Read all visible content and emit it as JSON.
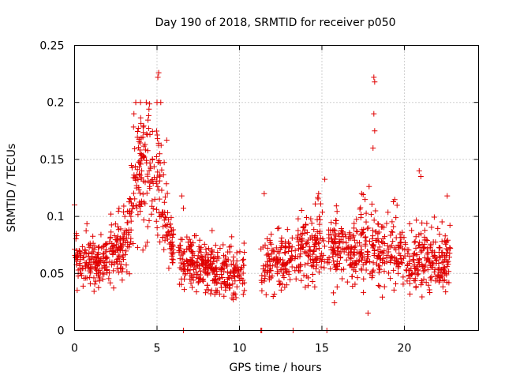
{
  "chart_data": {
    "type": "scatter",
    "title": "Day 190 of 2018, SRMTID for receiver p050",
    "xlabel": "GPS time / hours",
    "ylabel": "SRMTID / TECUs",
    "xlim": [
      0,
      24.5
    ],
    "ylim": [
      0,
      0.25
    ],
    "xticks": [
      0,
      5,
      10,
      15,
      20
    ],
    "yticks": [
      0,
      0.05,
      0.1,
      0.15,
      0.2,
      0.25
    ],
    "xtick_labels": [
      "0",
      "5",
      "10",
      "15",
      "20"
    ],
    "ytick_labels": [
      "0",
      "0.05",
      "0.1",
      "0.15",
      "0.2",
      "0.25"
    ],
    "grid": true,
    "series": [
      {
        "name": "SRMTID",
        "color": "#e00000",
        "marker": "plus",
        "profile_x": [
          0.0,
          0.5,
          1.0,
          1.5,
          2.0,
          2.5,
          3.0,
          3.3,
          3.6,
          4.0,
          4.4,
          4.8,
          5.2,
          5.6,
          6.0,
          6.5,
          7.0,
          8.0,
          9.0,
          10.0,
          10.3,
          11.3,
          12.0,
          13.0,
          14.0,
          15.0,
          16.0,
          17.0,
          18.0,
          19.0,
          20.0,
          21.0,
          22.0,
          22.8
        ],
        "profile_center": [
          0.065,
          0.058,
          0.058,
          0.056,
          0.062,
          0.07,
          0.068,
          0.09,
          0.125,
          0.145,
          0.13,
          0.12,
          0.13,
          0.09,
          0.065,
          0.06,
          0.06,
          0.055,
          0.052,
          0.05,
          0.05,
          0.055,
          0.058,
          0.06,
          0.07,
          0.075,
          0.07,
          0.068,
          0.07,
          0.065,
          0.06,
          0.06,
          0.058,
          0.055
        ],
        "profile_spread": [
          0.02,
          0.018,
          0.018,
          0.018,
          0.02,
          0.022,
          0.022,
          0.035,
          0.045,
          0.05,
          0.05,
          0.045,
          0.05,
          0.03,
          0.02,
          0.02,
          0.02,
          0.02,
          0.02,
          0.018,
          0.018,
          0.02,
          0.022,
          0.022,
          0.025,
          0.028,
          0.025,
          0.025,
          0.03,
          0.025,
          0.022,
          0.025,
          0.022,
          0.02
        ],
        "gaps": [
          [
            10.3,
            11.3
          ],
          [
            6.0,
            6.3
          ],
          [
            13.2,
            13.35
          ],
          [
            15.2,
            15.3
          ]
        ],
        "data_range_x": [
          0.0,
          22.8
        ],
        "notable_points": [
          {
            "x": 18.15,
            "y": 0.222
          },
          {
            "x": 18.2,
            "y": 0.218
          },
          {
            "x": 18.15,
            "y": 0.19
          },
          {
            "x": 18.2,
            "y": 0.175
          },
          {
            "x": 18.1,
            "y": 0.16
          },
          {
            "x": 5.1,
            "y": 0.226
          },
          {
            "x": 5.05,
            "y": 0.222
          },
          {
            "x": 4.0,
            "y": 0.2
          },
          {
            "x": 3.6,
            "y": 0.19
          },
          {
            "x": 5.0,
            "y": 0.2
          },
          {
            "x": 20.9,
            "y": 0.14
          },
          {
            "x": 21.0,
            "y": 0.135
          },
          {
            "x": 0.0,
            "y": 0.11
          },
          {
            "x": 6.5,
            "y": 0.118
          },
          {
            "x": 11.5,
            "y": 0.12
          },
          {
            "x": 14.8,
            "y": 0.12
          },
          {
            "x": 22.6,
            "y": 0.118
          }
        ],
        "zero_points_x": [
          6.6,
          11.3,
          11.35,
          13.25,
          15.3
        ]
      }
    ]
  }
}
